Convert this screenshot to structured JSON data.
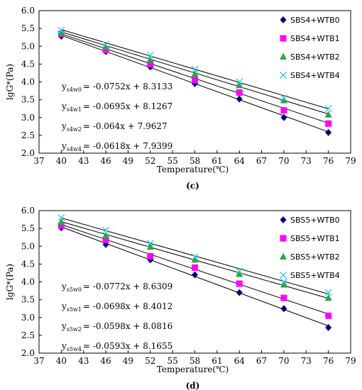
{
  "chart_data": [
    {
      "type": "scatter",
      "caption": "(c)",
      "xlabel": "Temperature(℃)",
      "ylabel": "lgG*(Pa)",
      "xlim": [
        37,
        79
      ],
      "ylim": [
        2.0,
        6.0
      ],
      "xticks": [
        "37",
        "40",
        "43",
        "46",
        "49",
        "52",
        "55",
        "58",
        "61",
        "64",
        "67",
        "70",
        "73",
        "76",
        "79"
      ],
      "yticks": [
        "2.0",
        "2.5",
        "3.0",
        "3.5",
        "4.0",
        "4.5",
        "5.0",
        "5.5",
        "6.0"
      ],
      "x": [
        40,
        46,
        52,
        58,
        64,
        70,
        76
      ],
      "legend_position": "top-right",
      "series": [
        {
          "name": "SBS4+WTB0",
          "marker": "diamond",
          "color": "#00007f",
          "values": [
            5.28,
            4.85,
            4.42,
            3.95,
            3.52,
            3.0,
            2.58
          ],
          "fit": {
            "label_main": "y",
            "label_sub": "s4w0",
            "rhs": "= -0.0752x + 8.3133",
            "slope": -0.0752,
            "intercept": 8.3133
          }
        },
        {
          "name": "SBS4+WTB1",
          "marker": "square",
          "color": "#ff00ff",
          "values": [
            5.35,
            4.9,
            4.5,
            4.05,
            3.7,
            3.2,
            2.83
          ],
          "fit": {
            "label_main": "y",
            "label_sub": "s4w1",
            "rhs": "= -0.0695x + 8.1267",
            "slope": -0.0695,
            "intercept": 8.1267
          }
        },
        {
          "name": "SBS4+WTB2",
          "marker": "triangle",
          "color": "#22aa44",
          "values": [
            5.38,
            4.98,
            4.62,
            4.22,
            3.9,
            3.48,
            3.08
          ],
          "fit": {
            "label_main": "y",
            "label_sub": "s4w2",
            "rhs": "= -0.064x + 7.9627",
            "slope": -0.064,
            "intercept": 7.9627
          }
        },
        {
          "name": "SBS4+WTB4",
          "marker": "x",
          "color": "#33ccdd",
          "values": [
            5.45,
            5.05,
            4.75,
            4.35,
            4.0,
            3.55,
            3.25
          ],
          "fit": {
            "label_main": "y",
            "label_sub": "s4w4",
            "rhs": "= -0.0618x + 7.9399",
            "slope": -0.0618,
            "intercept": 7.9399
          }
        }
      ]
    },
    {
      "type": "scatter",
      "caption": "(d)",
      "xlabel": "Temperature(℃)",
      "ylabel": "lgG*(Pa)",
      "xlim": [
        37,
        79
      ],
      "ylim": [
        2.0,
        6.0
      ],
      "xticks": [
        "37",
        "40",
        "43",
        "46",
        "49",
        "52",
        "55",
        "58",
        "61",
        "64",
        "67",
        "70",
        "73",
        "76",
        "79"
      ],
      "yticks": [
        "2.0",
        "2.5",
        "3.0",
        "3.5",
        "4.0",
        "4.5",
        "5.0",
        "5.5",
        "6.0"
      ],
      "x": [
        40,
        46,
        52,
        58,
        64,
        70,
        76
      ],
      "legend_position": "top-right",
      "series": [
        {
          "name": "SBS5+WTB0",
          "marker": "diamond",
          "color": "#00007f",
          "values": [
            5.52,
            5.05,
            4.62,
            4.2,
            3.7,
            3.25,
            2.72
          ],
          "fit": {
            "label_main": "y",
            "label_sub": "s5w0",
            "rhs": "= -0.0772x + 8.6309",
            "slope": -0.0772,
            "intercept": 8.6309
          }
        },
        {
          "name": "SBS5+WTB1",
          "marker": "square",
          "color": "#ff00ff",
          "values": [
            5.58,
            5.18,
            4.72,
            4.4,
            3.95,
            3.55,
            3.05
          ],
          "fit": {
            "label_main": "y",
            "label_sub": "s5w1",
            "rhs": "= -0.0698x + 8.4012",
            "slope": -0.0698,
            "intercept": 8.4012
          }
        },
        {
          "name": "SBS5+WTB2",
          "marker": "triangle",
          "color": "#22aa44",
          "values": [
            5.68,
            5.3,
            4.98,
            4.62,
            4.22,
            3.92,
            3.55
          ],
          "fit": {
            "label_main": "y",
            "label_sub": "s5w2",
            "rhs": "= -0.0598x + 8.0816",
            "slope": -0.0598,
            "intercept": 8.0816
          }
        },
        {
          "name": "SBS5+WTB4",
          "marker": "x",
          "color": "#33ccdd",
          "values": [
            5.8,
            5.45,
            5.08,
            4.7,
            4.3,
            4.0,
            3.7
          ],
          "fit": {
            "label_main": "y",
            "label_sub": "s5w4",
            "rhs": "= -0.0593x + 8.1655",
            "slope": -0.0593,
            "intercept": 8.1655
          }
        }
      ]
    }
  ]
}
